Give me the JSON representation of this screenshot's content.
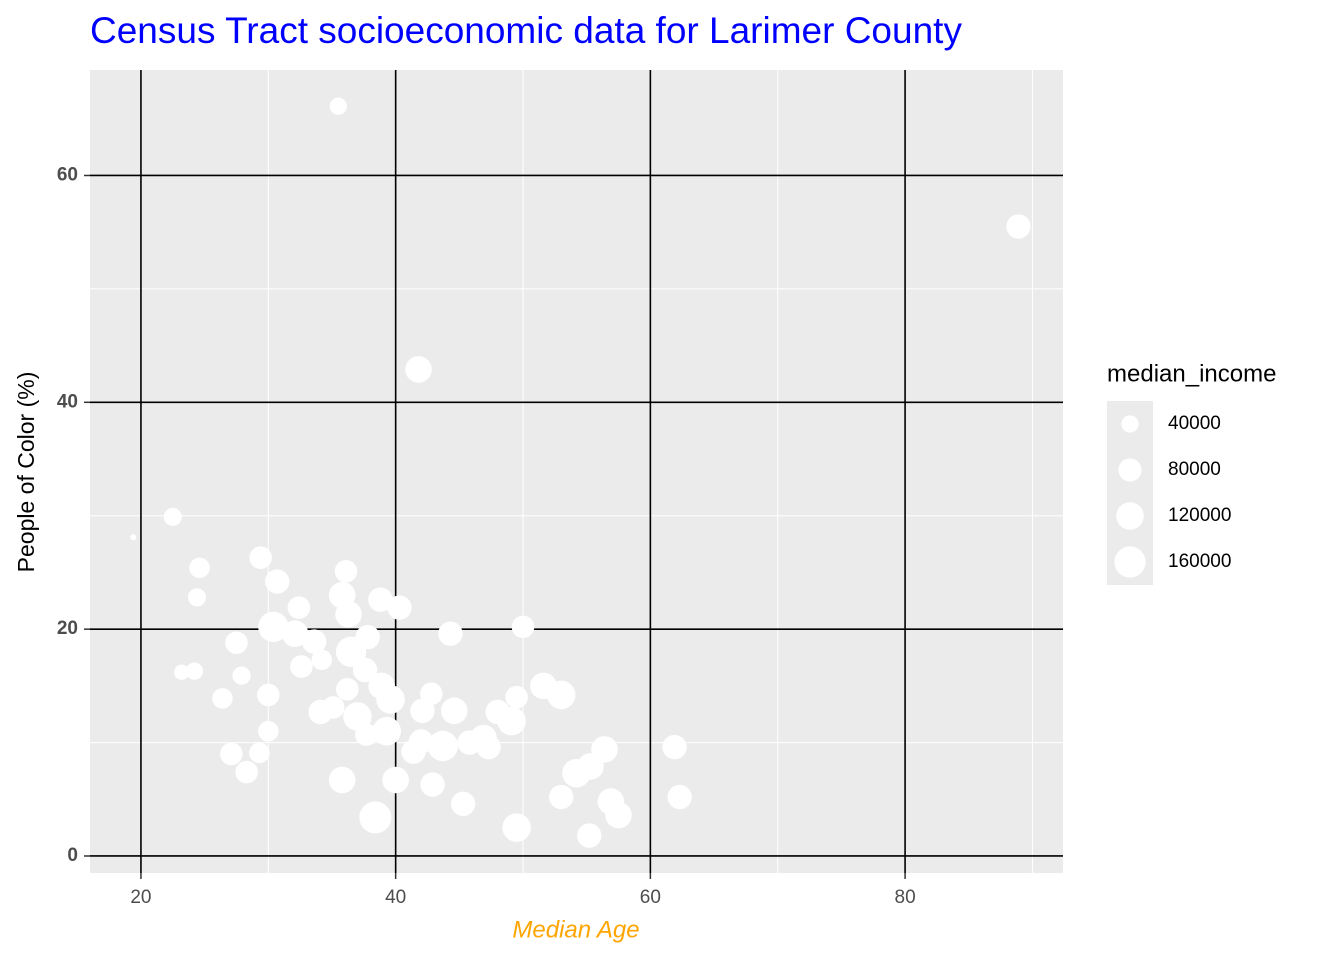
{
  "chart_data": {
    "type": "scatter",
    "title": "Census Tract socioeconomic data for Larimer County",
    "x_label": "Median Age",
    "y_label": "People of Color (%)",
    "x": [
      35.5,
      88.9,
      41.8,
      19.4,
      22.5,
      24.6,
      24.4,
      29.4,
      30.7,
      32.4,
      36.1,
      35.8,
      36.3,
      38.8,
      40.3,
      30.4,
      32.1,
      33.6,
      27.5,
      37.8,
      36.5,
      44.3,
      50.0,
      23.2,
      24.2,
      27.9,
      32.6,
      34.2,
      37.6,
      26.4,
      30.0,
      36.2,
      38.9,
      39.6,
      42.8,
      51.6,
      53.0,
      49.5,
      34.1,
      35.1,
      37.0,
      42.1,
      44.6,
      48.0,
      49.1,
      30.0,
      37.7,
      39.3,
      42.0,
      43.7,
      45.8,
      46.9,
      47.3,
      27.1,
      29.3,
      41.4,
      56.4,
      61.9,
      55.3,
      54.2,
      28.3,
      35.8,
      40.0,
      42.9,
      53.0,
      56.9,
      62.3,
      45.3,
      57.5,
      38.4,
      49.5,
      55.2
    ],
    "values": [
      66.1,
      55.5,
      42.9,
      28.1,
      29.9,
      25.4,
      22.8,
      26.3,
      24.2,
      21.9,
      25.1,
      23.0,
      21.3,
      22.6,
      21.9,
      20.2,
      19.6,
      18.9,
      18.8,
      19.3,
      18.0,
      19.6,
      20.2,
      16.2,
      16.3,
      15.9,
      16.7,
      17.3,
      16.4,
      13.9,
      14.2,
      14.7,
      15.0,
      13.8,
      14.3,
      15.0,
      14.2,
      14.0,
      12.7,
      13.1,
      12.3,
      12.8,
      12.8,
      12.7,
      11.9,
      11.0,
      10.7,
      11.0,
      10.1,
      9.7,
      10.0,
      10.4,
      9.6,
      9.0,
      9.1,
      9.2,
      9.4,
      9.6,
      7.9,
      7.3,
      7.4,
      6.7,
      6.7,
      6.3,
      5.2,
      4.8,
      5.2,
      4.6,
      3.6,
      3.4,
      2.5,
      1.8
    ],
    "size": [
      40000,
      90000,
      110000,
      10000,
      45000,
      60000,
      45000,
      75000,
      90000,
      75000,
      75000,
      110000,
      110000,
      90000,
      90000,
      150000,
      110000,
      90000,
      75000,
      90000,
      150000,
      90000,
      75000,
      30000,
      40000,
      45000,
      75000,
      60000,
      90000,
      60000,
      75000,
      75000,
      110000,
      130000,
      75000,
      110000,
      130000,
      75000,
      90000,
      75000,
      130000,
      90000,
      110000,
      90000,
      130000,
      60000,
      75000,
      130000,
      90000,
      150000,
      90000,
      110000,
      90000,
      75000,
      60000,
      90000,
      110000,
      90000,
      110000,
      130000,
      75000,
      110000,
      110000,
      90000,
      90000,
      110000,
      90000,
      90000,
      110000,
      170000,
      130000,
      90000
    ],
    "color": "#ffffff",
    "xlim": [
      16,
      92.4
    ],
    "xticks": [
      20,
      40,
      60,
      80
    ],
    "xminor": [
      30,
      50,
      70,
      90
    ],
    "ylim": [
      -1.5,
      69.3
    ],
    "yticks": [
      0,
      20,
      40,
      60
    ],
    "yminor": [
      10,
      30,
      50
    ],
    "grid": true,
    "legend": {
      "title": "median_income",
      "values": [
        40000,
        80000,
        120000,
        160000
      ]
    }
  }
}
